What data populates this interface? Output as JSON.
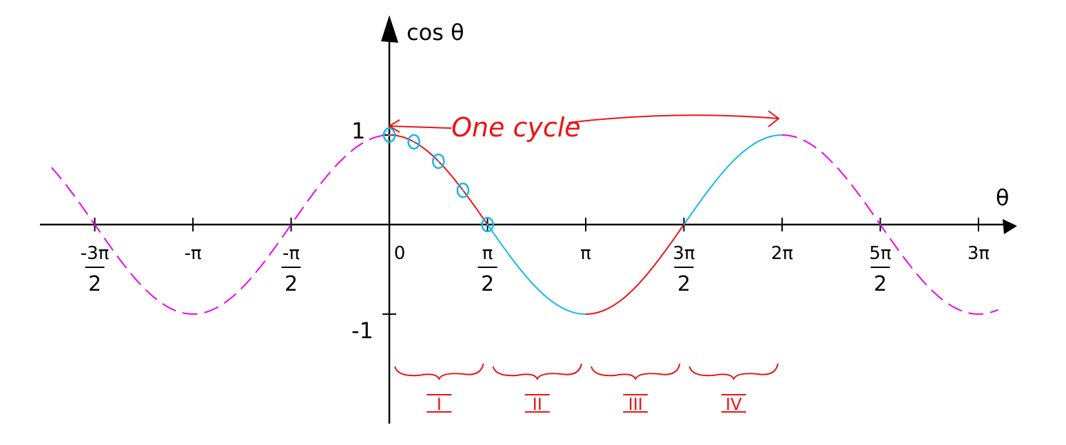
{
  "chart_data": {
    "type": "line",
    "title": "",
    "xlabel": "θ",
    "ylabel": "cos θ",
    "xlim_pi": [
      -1.75,
      3.1
    ],
    "ylim": [
      -1.6,
      2.2
    ],
    "y_ticks": [
      {
        "value": 1,
        "label": "1"
      },
      {
        "value": -1,
        "label": "-1"
      }
    ],
    "x_ticks": [
      {
        "value_pi": -1.5,
        "num": "-3π",
        "den": "2"
      },
      {
        "value_pi": -1,
        "num": "-π",
        "den": ""
      },
      {
        "value_pi": -0.5,
        "num": "-π",
        "den": "2"
      },
      {
        "value_pi": 0,
        "num": "0",
        "den": ""
      },
      {
        "value_pi": 0.5,
        "num": "π",
        "den": "2"
      },
      {
        "value_pi": 1,
        "num": "π",
        "den": ""
      },
      {
        "value_pi": 1.5,
        "num": "3π",
        "den": "2"
      },
      {
        "value_pi": 2,
        "num": "2π",
        "den": ""
      },
      {
        "value_pi": 2.5,
        "num": "5π",
        "den": "2"
      },
      {
        "value_pi": 3,
        "num": "3π",
        "den": ""
      }
    ],
    "series": [
      {
        "name": "cos-extension-left",
        "function": "cos",
        "from_pi": -1.72,
        "to_pi": 0,
        "color": "#ee00ee",
        "dashed": true
      },
      {
        "name": "quadrant-I",
        "function": "cos",
        "from_pi": 0,
        "to_pi": 0.5,
        "color": "#ee1111",
        "dashed": false
      },
      {
        "name": "quadrant-II",
        "function": "cos",
        "from_pi": 0.5,
        "to_pi": 1,
        "color": "#11b8ee",
        "dashed": false
      },
      {
        "name": "quadrant-III",
        "function": "cos",
        "from_pi": 1,
        "to_pi": 1.5,
        "color": "#ee1111",
        "dashed": false
      },
      {
        "name": "quadrant-IV",
        "function": "cos",
        "from_pi": 1.5,
        "to_pi": 2,
        "color": "#11b8ee",
        "dashed": false
      },
      {
        "name": "cos-extension-right",
        "function": "cos",
        "from_pi": 2,
        "to_pi": 3.1,
        "color": "#ee00ee",
        "dashed": true
      }
    ],
    "marked_points_pi": [
      0,
      0.125,
      0.25,
      0.375,
      0.5
    ],
    "marked_point_color": "#11b8ee",
    "annotations": {
      "cycle_label": "One cycle",
      "cycle_from_pi": 0,
      "cycle_to_pi": 2,
      "color": "#ee1111",
      "quadrants": [
        {
          "label": "I",
          "from_pi": 0,
          "to_pi": 0.5
        },
        {
          "label": "II",
          "from_pi": 0.5,
          "to_pi": 1
        },
        {
          "label": "III",
          "from_pi": 1,
          "to_pi": 1.5
        },
        {
          "label": "IV",
          "from_pi": 1.5,
          "to_pi": 2
        }
      ]
    }
  }
}
